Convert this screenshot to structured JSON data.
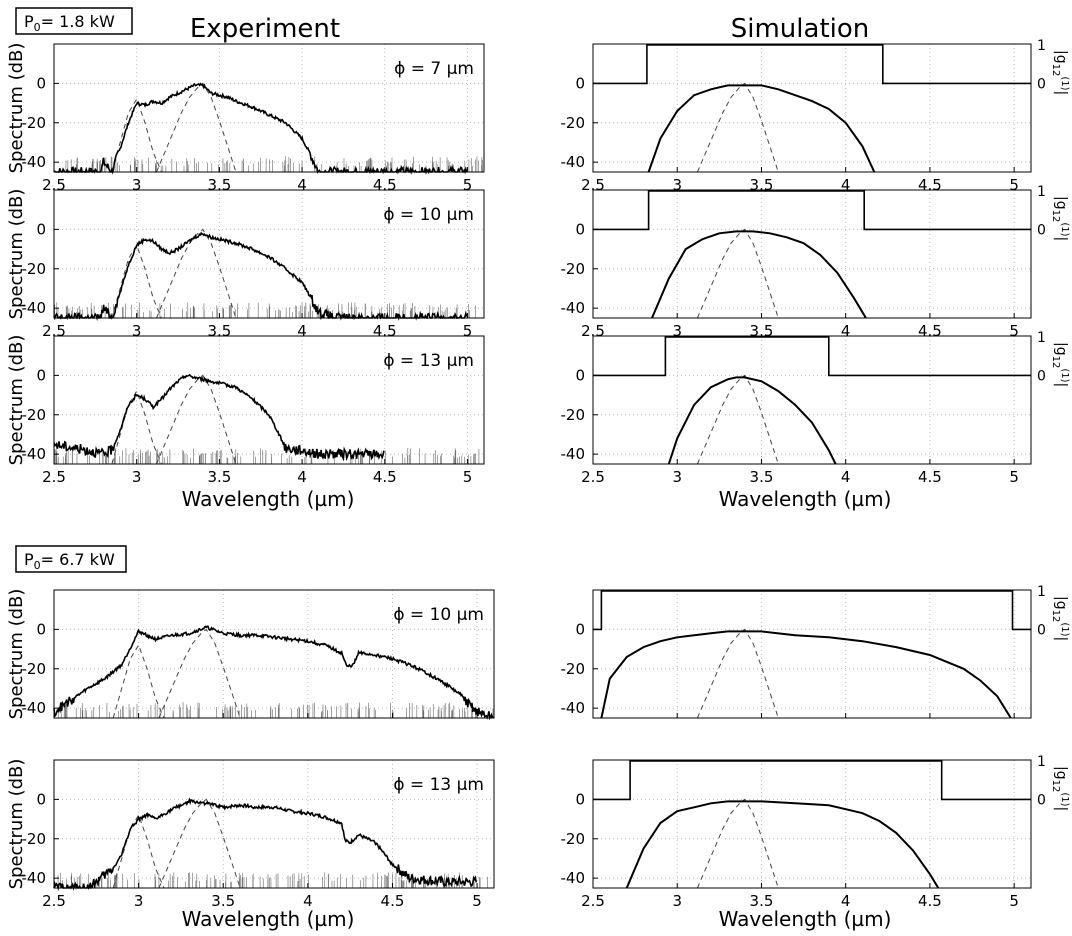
{
  "figure": {
    "groups": [
      {
        "power_label": "P",
        "power_sub": "0",
        "power_value": "= 1.8 kW"
      },
      {
        "power_label": "P",
        "power_sub": "0",
        "power_value": "= 6.7 kW"
      }
    ],
    "column_titles": [
      "Experiment",
      "Simulation"
    ],
    "ylabel": "Spectrum (dB)",
    "xlabel": "Wavelength (µm)",
    "right_axis_label": "|g12(1)|",
    "right_axis_label_parts": {
      "main": "g",
      "sub": "12",
      "sup": "(1)"
    }
  },
  "chart_data": [
    {
      "type": "line",
      "panel": "experiment",
      "group": "1.8 kW",
      "annotation": "ϕ = 7 µm",
      "x": [
        2.5,
        2.78,
        2.8,
        2.85,
        2.9,
        2.95,
        3.0,
        3.05,
        3.1,
        3.15,
        3.2,
        3.25,
        3.3,
        3.35,
        3.4,
        3.45,
        3.5,
        3.55,
        3.6,
        3.7,
        3.8,
        3.9,
        4.0,
        4.05,
        4.1,
        4.5,
        5.0
      ],
      "y": [
        -45,
        -45,
        -40,
        -45,
        -33,
        -20,
        -10,
        -11,
        -9,
        -10,
        -7,
        -5,
        -3,
        -1,
        -1,
        -5,
        -6,
        -7,
        -9,
        -12,
        -16,
        -20,
        -28,
        -36,
        -45,
        -45,
        -45
      ],
      "pump_x": [
        3.12,
        3.17,
        3.22,
        3.27,
        3.32,
        3.37,
        3.4,
        3.45,
        3.5,
        3.55,
        3.6
      ],
      "pump_y": [
        -45,
        -35,
        -25,
        -15,
        -7,
        -2,
        0,
        -7,
        -19,
        -32,
        -45
      ],
      "ylim": [
        -45,
        20
      ],
      "xlim": [
        2.5,
        5.1
      ],
      "xticks": [
        2.5,
        3,
        3.5,
        4,
        4.5,
        5
      ],
      "yticks": [
        -40,
        -20,
        0
      ],
      "ytick_labels": [
        "-40",
        "-20",
        "0"
      ]
    },
    {
      "type": "line",
      "panel": "experiment",
      "group": "1.8 kW",
      "annotation": "ϕ = 10 µm",
      "x": [
        2.5,
        2.78,
        2.8,
        2.85,
        2.9,
        2.95,
        3.0,
        3.05,
        3.1,
        3.15,
        3.2,
        3.25,
        3.3,
        3.35,
        3.4,
        3.45,
        3.5,
        3.6,
        3.7,
        3.8,
        3.9,
        4.0,
        4.05,
        4.1,
        4.2,
        5.0
      ],
      "y": [
        -45,
        -45,
        -40,
        -45,
        -32,
        -18,
        -8,
        -5,
        -6,
        -10,
        -12,
        -10,
        -7,
        -4,
        -2,
        -4,
        -5,
        -7,
        -10,
        -14,
        -20,
        -27,
        -34,
        -42,
        -45,
        -45
      ],
      "pump_x": [
        3.12,
        3.17,
        3.22,
        3.27,
        3.32,
        3.37,
        3.4,
        3.45,
        3.5,
        3.55,
        3.6
      ],
      "pump_y": [
        -45,
        -35,
        -25,
        -15,
        -7,
        -2,
        0,
        -7,
        -19,
        -32,
        -45
      ],
      "ylim": [
        -45,
        20
      ],
      "xlim": [
        2.5,
        5.1
      ],
      "xticks": [
        2.5,
        3,
        3.5,
        4,
        4.5,
        5
      ],
      "yticks": [
        -40,
        -20,
        0
      ],
      "ytick_labels": [
        "-40",
        "-20",
        "0"
      ]
    },
    {
      "type": "line",
      "panel": "experiment",
      "group": "1.8 kW",
      "annotation": "ϕ = 13 µm",
      "x": [
        2.5,
        2.7,
        2.8,
        2.85,
        2.9,
        2.95,
        3.0,
        3.05,
        3.1,
        3.15,
        3.2,
        3.25,
        3.3,
        3.35,
        3.4,
        3.5,
        3.6,
        3.7,
        3.8,
        3.85,
        3.9,
        4.0,
        4.1,
        4.5
      ],
      "y": [
        -35,
        -38,
        -40,
        -38,
        -28,
        -15,
        -10,
        -12,
        -16,
        -12,
        -7,
        -3,
        0,
        -1,
        -2,
        -4,
        -6,
        -12,
        -20,
        -28,
        -37,
        -38,
        -40,
        -40
      ],
      "pump_x": [
        3.12,
        3.17,
        3.22,
        3.27,
        3.32,
        3.37,
        3.4,
        3.45,
        3.5,
        3.55,
        3.6
      ],
      "pump_y": [
        -45,
        -35,
        -25,
        -15,
        -7,
        -2,
        0,
        -7,
        -19,
        -32,
        -45
      ],
      "ylim": [
        -45,
        20
      ],
      "xlim": [
        2.5,
        5.1
      ],
      "xticks": [
        2.5,
        3,
        3.5,
        4,
        4.5,
        5
      ],
      "yticks": [
        -40,
        -20,
        0
      ],
      "ytick_labels": [
        "-40",
        "-20",
        "0"
      ]
    },
    {
      "type": "line",
      "panel": "simulation",
      "group": "1.8 kW",
      "x": [
        2.83,
        2.9,
        3.0,
        3.1,
        3.2,
        3.3,
        3.4,
        3.5,
        3.6,
        3.7,
        3.8,
        3.9,
        4.0,
        4.1,
        4.17
      ],
      "y": [
        -45,
        -28,
        -14,
        -6,
        -3,
        -1,
        -1,
        -1,
        -3,
        -6,
        -9,
        -13,
        -20,
        -32,
        -45
      ],
      "coherence_x": [
        2.5,
        2.82,
        2.82,
        4.22,
        4.22,
        5.1
      ],
      "coherence_y": [
        0,
        0,
        1,
        1,
        0,
        0
      ],
      "ylim": [
        -45,
        20
      ],
      "xlim": [
        2.5,
        5.1
      ],
      "xticks": [
        2.5,
        3,
        3.5,
        4,
        4.5,
        5
      ],
      "yticks": [
        -40,
        -20,
        0
      ],
      "ytick_labels": [
        "-40",
        "-20",
        "0"
      ],
      "right_ticks": [
        0,
        1
      ]
    },
    {
      "type": "line",
      "panel": "simulation",
      "group": "1.8 kW",
      "x": [
        2.85,
        2.95,
        3.05,
        3.15,
        3.25,
        3.35,
        3.45,
        3.55,
        3.65,
        3.75,
        3.85,
        3.95,
        4.05,
        4.12
      ],
      "y": [
        -45,
        -25,
        -10,
        -5,
        -2,
        -1,
        -1,
        -2,
        -4,
        -7,
        -13,
        -22,
        -35,
        -45
      ],
      "coherence_x": [
        2.5,
        2.83,
        2.83,
        4.11,
        4.11,
        5.1
      ],
      "coherence_y": [
        0,
        0,
        1,
        1,
        0,
        0
      ],
      "ylim": [
        -45,
        20
      ],
      "xlim": [
        2.5,
        5.1
      ],
      "xticks": [
        2.5,
        3,
        3.5,
        4,
        4.5,
        5
      ],
      "yticks": [
        -40,
        -20,
        0
      ],
      "ytick_labels": [
        "-40",
        "-20",
        "0"
      ],
      "right_ticks": [
        0,
        1
      ]
    },
    {
      "type": "line",
      "panel": "simulation",
      "group": "1.8 kW",
      "x": [
        2.95,
        3.0,
        3.1,
        3.2,
        3.3,
        3.35,
        3.4,
        3.5,
        3.6,
        3.7,
        3.8,
        3.9,
        3.94
      ],
      "y": [
        -45,
        -32,
        -15,
        -6,
        -2,
        -1,
        -1,
        -3,
        -8,
        -15,
        -24,
        -38,
        -45
      ],
      "coherence_x": [
        2.5,
        2.93,
        2.93,
        3.9,
        3.9,
        5.1
      ],
      "coherence_y": [
        0,
        0,
        1,
        1,
        0,
        0
      ],
      "ylim": [
        -45,
        20
      ],
      "xlim": [
        2.5,
        5.1
      ],
      "xticks": [
        2.5,
        3,
        3.5,
        4,
        4.5,
        5
      ],
      "yticks": [
        -40,
        -20,
        0
      ],
      "ytick_labels": [
        "-40",
        "-20",
        "0"
      ],
      "right_ticks": [
        0,
        1
      ]
    },
    {
      "type": "line",
      "panel": "experiment",
      "group": "6.7 kW",
      "annotation": "ϕ = 10 µm",
      "x": [
        2.5,
        2.6,
        2.7,
        2.8,
        2.9,
        3.0,
        3.1,
        3.2,
        3.3,
        3.4,
        3.5,
        3.6,
        3.7,
        3.8,
        3.9,
        4.0,
        4.1,
        4.2,
        4.23,
        4.27,
        4.3,
        4.4,
        4.5,
        4.6,
        4.7,
        4.8,
        4.9,
        5.0,
        5.1
      ],
      "y": [
        -42,
        -36,
        -30,
        -25,
        -18,
        -1,
        -5,
        -3,
        -2,
        1,
        -2,
        -3,
        -3,
        -4,
        -5,
        -6,
        -8,
        -12,
        -19,
        -18,
        -12,
        -13,
        -15,
        -18,
        -22,
        -27,
        -33,
        -42,
        -45
      ],
      "pump_x": [
        3.12,
        3.17,
        3.22,
        3.27,
        3.32,
        3.37,
        3.4,
        3.45,
        3.5,
        3.55,
        3.6
      ],
      "pump_y": [
        -45,
        -35,
        -25,
        -15,
        -7,
        -2,
        0,
        -7,
        -19,
        -32,
        -45
      ],
      "ylim": [
        -45,
        20
      ],
      "xlim": [
        2.5,
        5.1
      ],
      "xticks": [],
      "yticks": [
        -40,
        -20,
        0
      ],
      "ytick_labels": [
        "-40",
        "-20",
        "0"
      ]
    },
    {
      "type": "line",
      "panel": "experiment",
      "group": "6.7 kW",
      "annotation": "ϕ = 13 µm",
      "x": [
        2.5,
        2.7,
        2.78,
        2.85,
        2.9,
        2.95,
        3.0,
        3.05,
        3.1,
        3.2,
        3.3,
        3.4,
        3.5,
        3.6,
        3.7,
        3.8,
        3.9,
        4.0,
        4.1,
        4.2,
        4.22,
        4.25,
        4.3,
        4.4,
        4.5,
        4.6,
        4.8,
        5.0
      ],
      "y": [
        -45,
        -45,
        -40,
        -35,
        -28,
        -15,
        -10,
        -8,
        -10,
        -5,
        -1,
        -2,
        -4,
        -3,
        -4,
        -4,
        -6,
        -7,
        -9,
        -12,
        -21,
        -22,
        -18,
        -22,
        -33,
        -40,
        -42,
        -42
      ],
      "pump_x": [
        3.12,
        3.17,
        3.22,
        3.27,
        3.32,
        3.37,
        3.4,
        3.45,
        3.5,
        3.55,
        3.6
      ],
      "pump_y": [
        -45,
        -35,
        -25,
        -15,
        -7,
        -2,
        0,
        -7,
        -19,
        -32,
        -45
      ],
      "ylim": [
        -45,
        20
      ],
      "xlim": [
        2.5,
        5.1
      ],
      "xticks": [
        2.5,
        3,
        3.5,
        4,
        4.5,
        5
      ],
      "yticks": [
        -40,
        -20,
        0
      ],
      "ytick_labels": [
        "-40",
        "-20",
        "0"
      ]
    },
    {
      "type": "line",
      "panel": "simulation",
      "group": "6.7 kW",
      "x": [
        2.55,
        2.6,
        2.7,
        2.8,
        2.9,
        3.0,
        3.2,
        3.3,
        3.5,
        3.7,
        3.9,
        4.1,
        4.3,
        4.5,
        4.7,
        4.8,
        4.9,
        4.98
      ],
      "y": [
        -45,
        -25,
        -14,
        -9,
        -6,
        -4,
        -2,
        -1,
        -1,
        -3,
        -4,
        -6,
        -9,
        -13,
        -20,
        -26,
        -34,
        -45
      ],
      "coherence_x": [
        2.5,
        2.55,
        2.55,
        4.99,
        4.99,
        5.1
      ],
      "coherence_y": [
        0,
        0,
        1,
        1,
        0,
        0
      ],
      "ylim": [
        -45,
        20
      ],
      "xlim": [
        2.5,
        5.1
      ],
      "xticks": [],
      "yticks": [
        -40,
        -20,
        0
      ],
      "ytick_labels": [
        "-40",
        "-20",
        "0"
      ],
      "right_ticks": [
        0,
        1
      ]
    },
    {
      "type": "line",
      "panel": "simulation",
      "group": "6.7 kW",
      "x": [
        2.7,
        2.8,
        2.9,
        3.0,
        3.1,
        3.2,
        3.3,
        3.5,
        3.7,
        3.9,
        4.0,
        4.1,
        4.2,
        4.3,
        4.4,
        4.5,
        4.55
      ],
      "y": [
        -45,
        -25,
        -12,
        -6,
        -4,
        -2,
        -1,
        -1,
        -2,
        -3,
        -5,
        -7,
        -11,
        -17,
        -26,
        -38,
        -45
      ],
      "coherence_x": [
        2.5,
        2.72,
        2.72,
        4.57,
        4.57,
        5.1
      ],
      "coherence_y": [
        0,
        0,
        1,
        1,
        0,
        0
      ],
      "ylim": [
        -45,
        20
      ],
      "xlim": [
        2.5,
        5.1
      ],
      "xticks": [
        2.5,
        3,
        3.5,
        4,
        4.5,
        5
      ],
      "yticks": [
        -40,
        -20,
        0
      ],
      "ytick_labels": [
        "-40",
        "-20",
        "0"
      ],
      "right_ticks": [
        0,
        1
      ]
    }
  ]
}
